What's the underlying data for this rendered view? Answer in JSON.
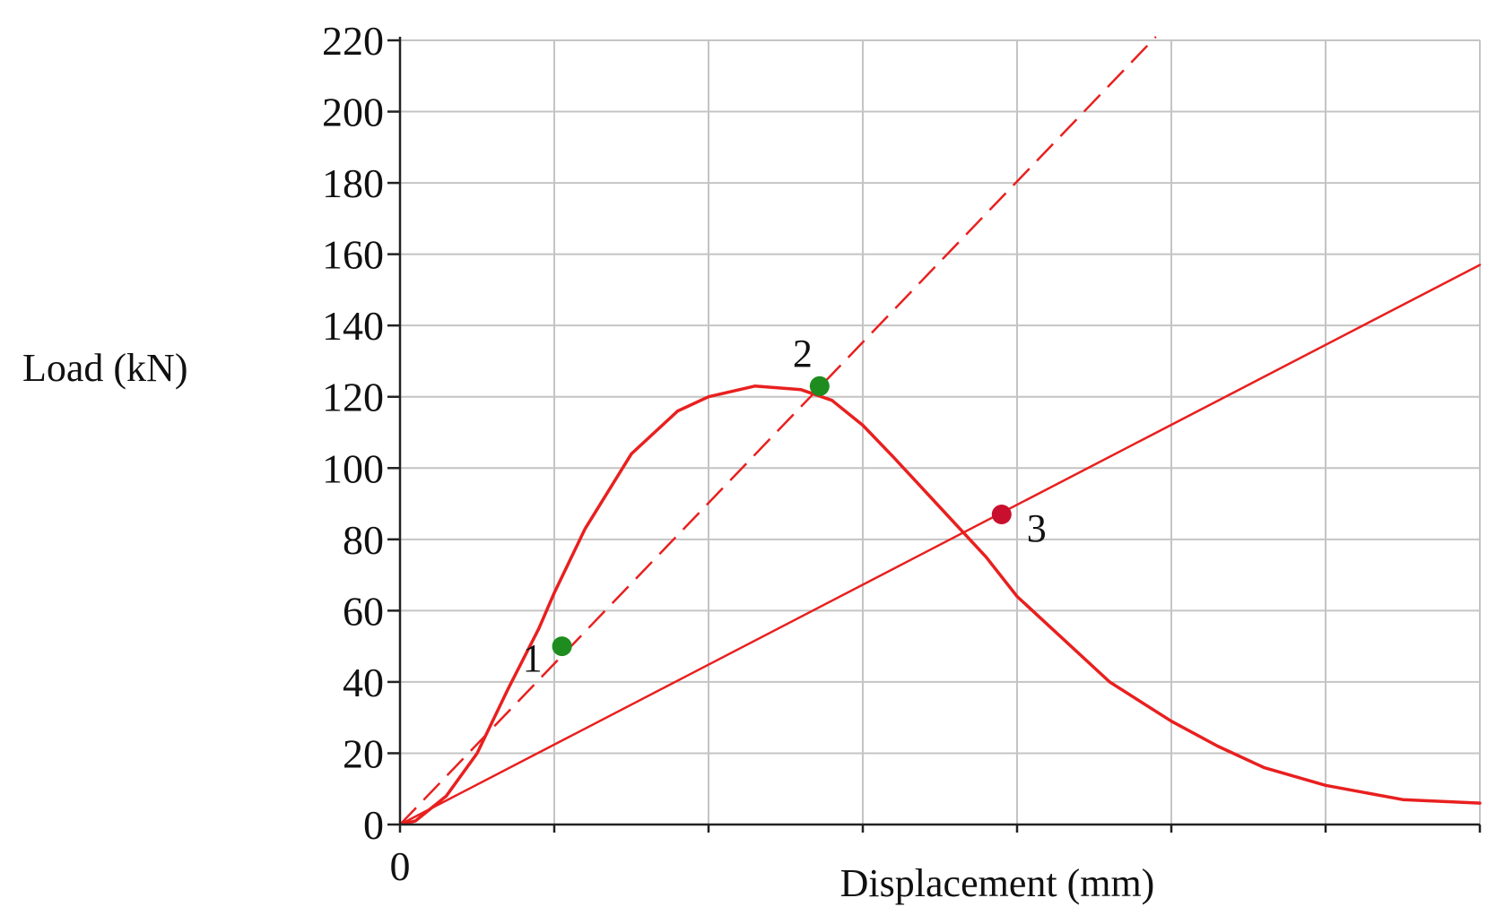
{
  "chart_data": {
    "type": "line",
    "xlabel": "Displacement (mm)",
    "ylabel": "Load (kN)",
    "xlim": [
      0,
      7
    ],
    "ylim": [
      0,
      220
    ],
    "x_tick_labels": [
      {
        "x": 0,
        "label": "0"
      }
    ],
    "x_tick_positions": [
      0,
      1,
      2,
      3,
      4,
      5,
      6,
      7
    ],
    "y_ticks": [
      0,
      20,
      40,
      60,
      80,
      100,
      120,
      140,
      160,
      180,
      200,
      220
    ],
    "grid": true,
    "series": [
      {
        "style": "solid",
        "color": "#e8201f",
        "x": [
          0,
          0.1,
          0.3,
          0.5,
          0.7,
          0.9,
          1.0,
          1.2,
          1.5,
          1.8,
          2.0,
          2.3,
          2.6,
          2.8,
          3.0,
          3.2,
          3.5,
          3.8,
          4.0,
          4.3,
          4.6,
          5.0,
          5.3,
          5.6,
          6.0,
          6.5,
          7.0
        ],
        "y": [
          0,
          1,
          8,
          20,
          38,
          55,
          65,
          83,
          104,
          116,
          120,
          123,
          122,
          119,
          112,
          103,
          89,
          75,
          64,
          52,
          40,
          29,
          22,
          16,
          11,
          7,
          6
        ]
      },
      {
        "style": "dashed",
        "color": "#e8201f",
        "x": [
          0,
          4.9
        ],
        "y": [
          0,
          221
        ]
      },
      {
        "style": "solid",
        "color": "#e8201f",
        "x": [
          0,
          7.0
        ],
        "y": [
          0,
          157
        ]
      }
    ],
    "points": [
      {
        "label": "1",
        "x": 1.05,
        "y": 50,
        "color": "#1e8c1e"
      },
      {
        "label": "2",
        "x": 2.72,
        "y": 123,
        "color": "#1e8c1e"
      },
      {
        "label": "3",
        "x": 3.9,
        "y": 87,
        "color": "#c8102e"
      }
    ]
  }
}
